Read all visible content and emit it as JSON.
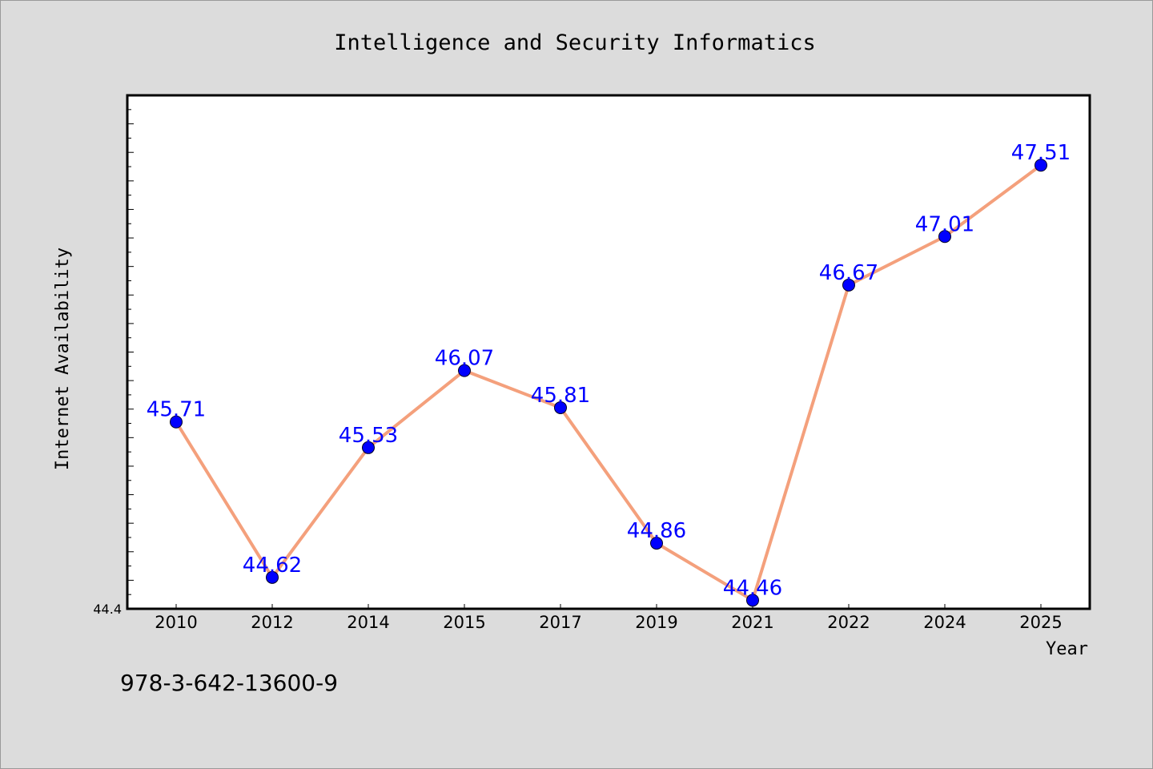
{
  "chart_data": {
    "type": "line",
    "title": "Intelligence and Security Informatics",
    "xlabel": "Year",
    "ylabel": "Internet Availability",
    "categories": [
      "2010",
      "2012",
      "2014",
      "2015",
      "2017",
      "2019",
      "2021",
      "2022",
      "2024",
      "2025"
    ],
    "series": [
      {
        "values": [
          45.71,
          44.62,
          45.53,
          46.07,
          45.81,
          44.86,
          44.46,
          46.67,
          47.01,
          47.51
        ],
        "labels": [
          "45.71",
          "44.62",
          "45.53",
          "46.07",
          "45.81",
          "44.86",
          "44.46",
          "46.67",
          "47.01",
          "47.51"
        ],
        "line_color": "#f4a07c",
        "marker_color": "#0000ff"
      }
    ],
    "ylim": [
      44.4,
      48.0
    ],
    "ytick_label": "44.4",
    "grid": false,
    "legend": "none"
  },
  "footnote": "978-3-642-13600-9",
  "colors": {
    "background": "#dcdcdc",
    "plot_background": "#ffffff",
    "line": "#f4a07c",
    "marker": "#0000ff",
    "data_label": "#0000ff"
  }
}
